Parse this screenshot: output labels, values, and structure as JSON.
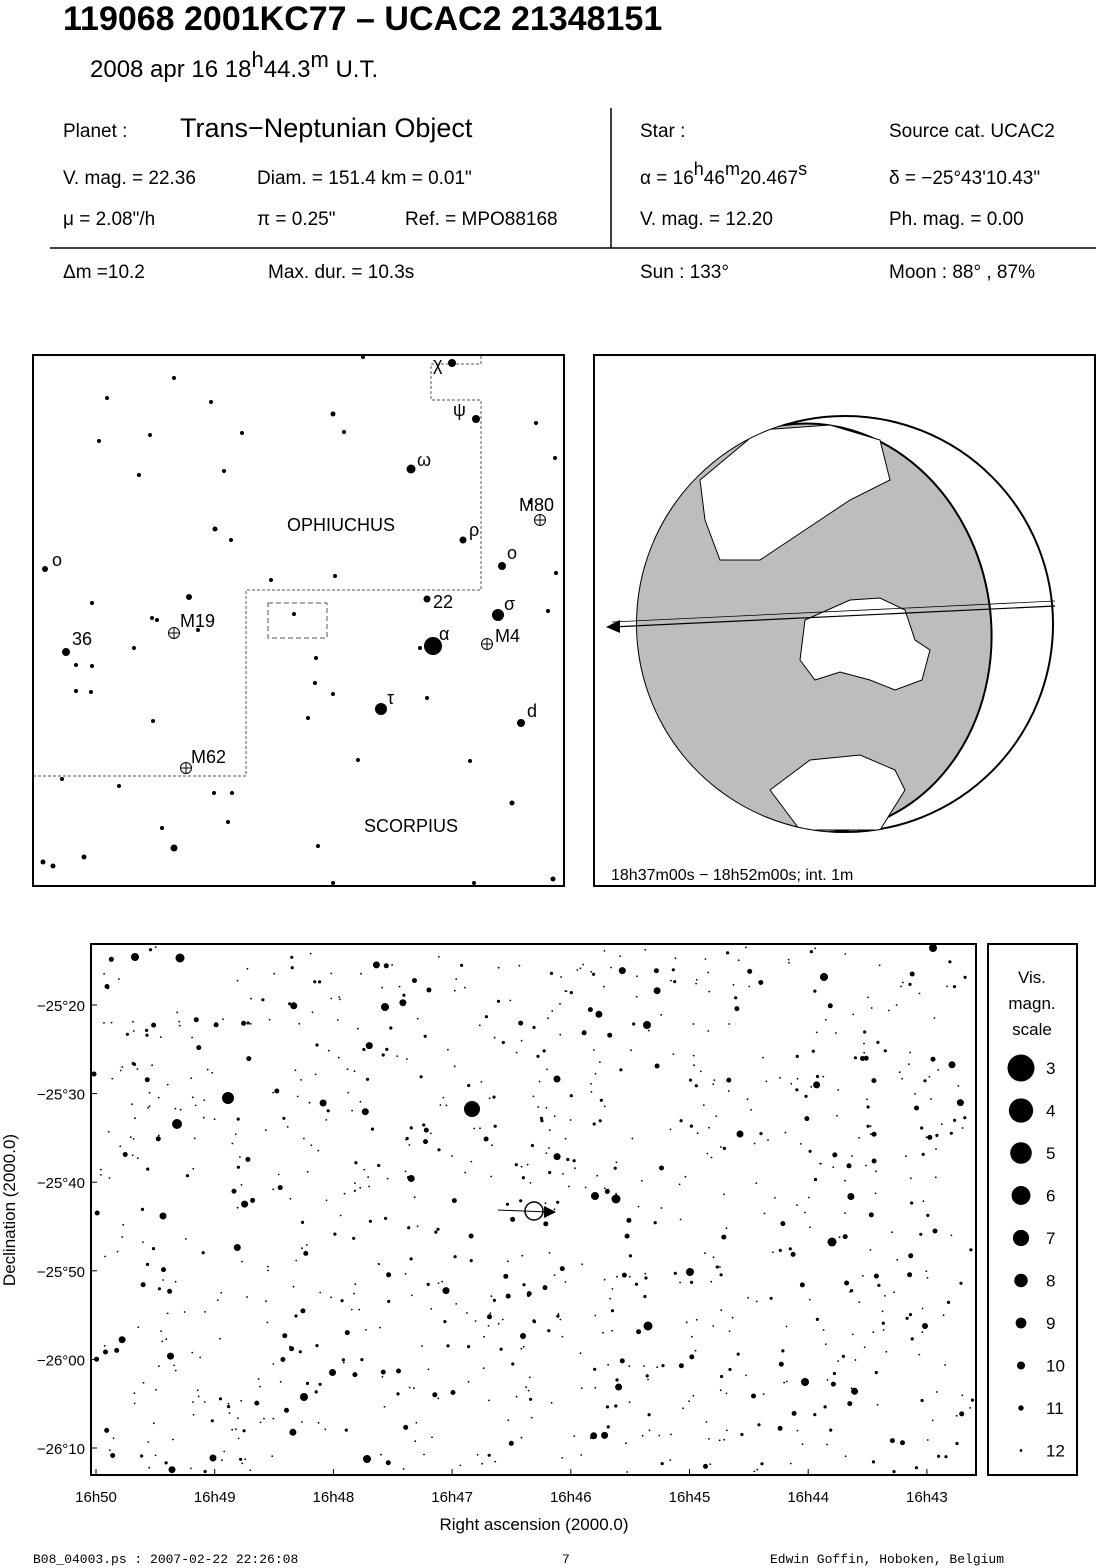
{
  "header": {
    "title": "119068 2001KC77  –  UCAC2 21348151",
    "date": "2008 apr 16  18",
    "date_h": "h",
    "date_min": "44.3",
    "date_m": "m",
    "date_ut": " U.T."
  },
  "info": {
    "planet_label": "Planet :",
    "planet": "Trans−Neptunian Object",
    "star_label": "Star :",
    "source": "Source cat.  UCAC2",
    "vmag": "V. mag. = 22.36",
    "diam": "Diam. = 151.4 km = 0.01\"",
    "ra": "α = 16",
    "ra_h": "h",
    "ra_min": "46",
    "ra_m": "m",
    "ra_sec": "20.467",
    "ra_s": "s",
    "dec": "δ = −25°43'10.43\"",
    "mu": "μ =  2.08\"/h",
    "parallax": "π =  0.25\"",
    "ref": "Ref. = MPO88168",
    "star_vmag": "V. mag. = 12.20",
    "phmag": "Ph. mag. =  0.00",
    "dm": "Δm =10.2",
    "maxdur": "Max. dur. = 10.3s",
    "sun": "Sun : 133°",
    "moon": "Moon :  88° , 87%"
  },
  "overview_map": {
    "constellations": [
      "OPHIUCHUS",
      "SCORPIUS"
    ],
    "labels": [
      "χ",
      "ψ",
      "ω",
      "ρ",
      "o",
      "σ",
      "α",
      "τ",
      "d",
      "22",
      "36",
      "o",
      "M80",
      "M19",
      "M4",
      "M62"
    ]
  },
  "globe": {
    "caption": "18h37m00s − 18h52m00s; int.  1m"
  },
  "star_field": {
    "yticks": [
      "−25°20",
      "−25°30",
      "−25°40",
      "−25°50",
      "−26°00",
      "−26°10"
    ],
    "xticks": [
      "16h50",
      "16h49",
      "16h48",
      "16h47",
      "16h46",
      "16h45",
      "16h44",
      "16h43"
    ],
    "xlabel": "Right ascension (2000.0)",
    "ylabel": "Declination (2000.0)",
    "legend": {
      "title": [
        "Vis.",
        "magn.",
        "scale"
      ],
      "magnitudes": [
        3,
        4,
        5,
        6,
        7,
        8,
        9,
        10,
        11,
        12
      ]
    }
  },
  "footer": {
    "file": "B08_04003.ps : 2007-02-22 22:26:08",
    "page": "7",
    "author": "Edwin Goffin, Hoboken, Belgium"
  }
}
